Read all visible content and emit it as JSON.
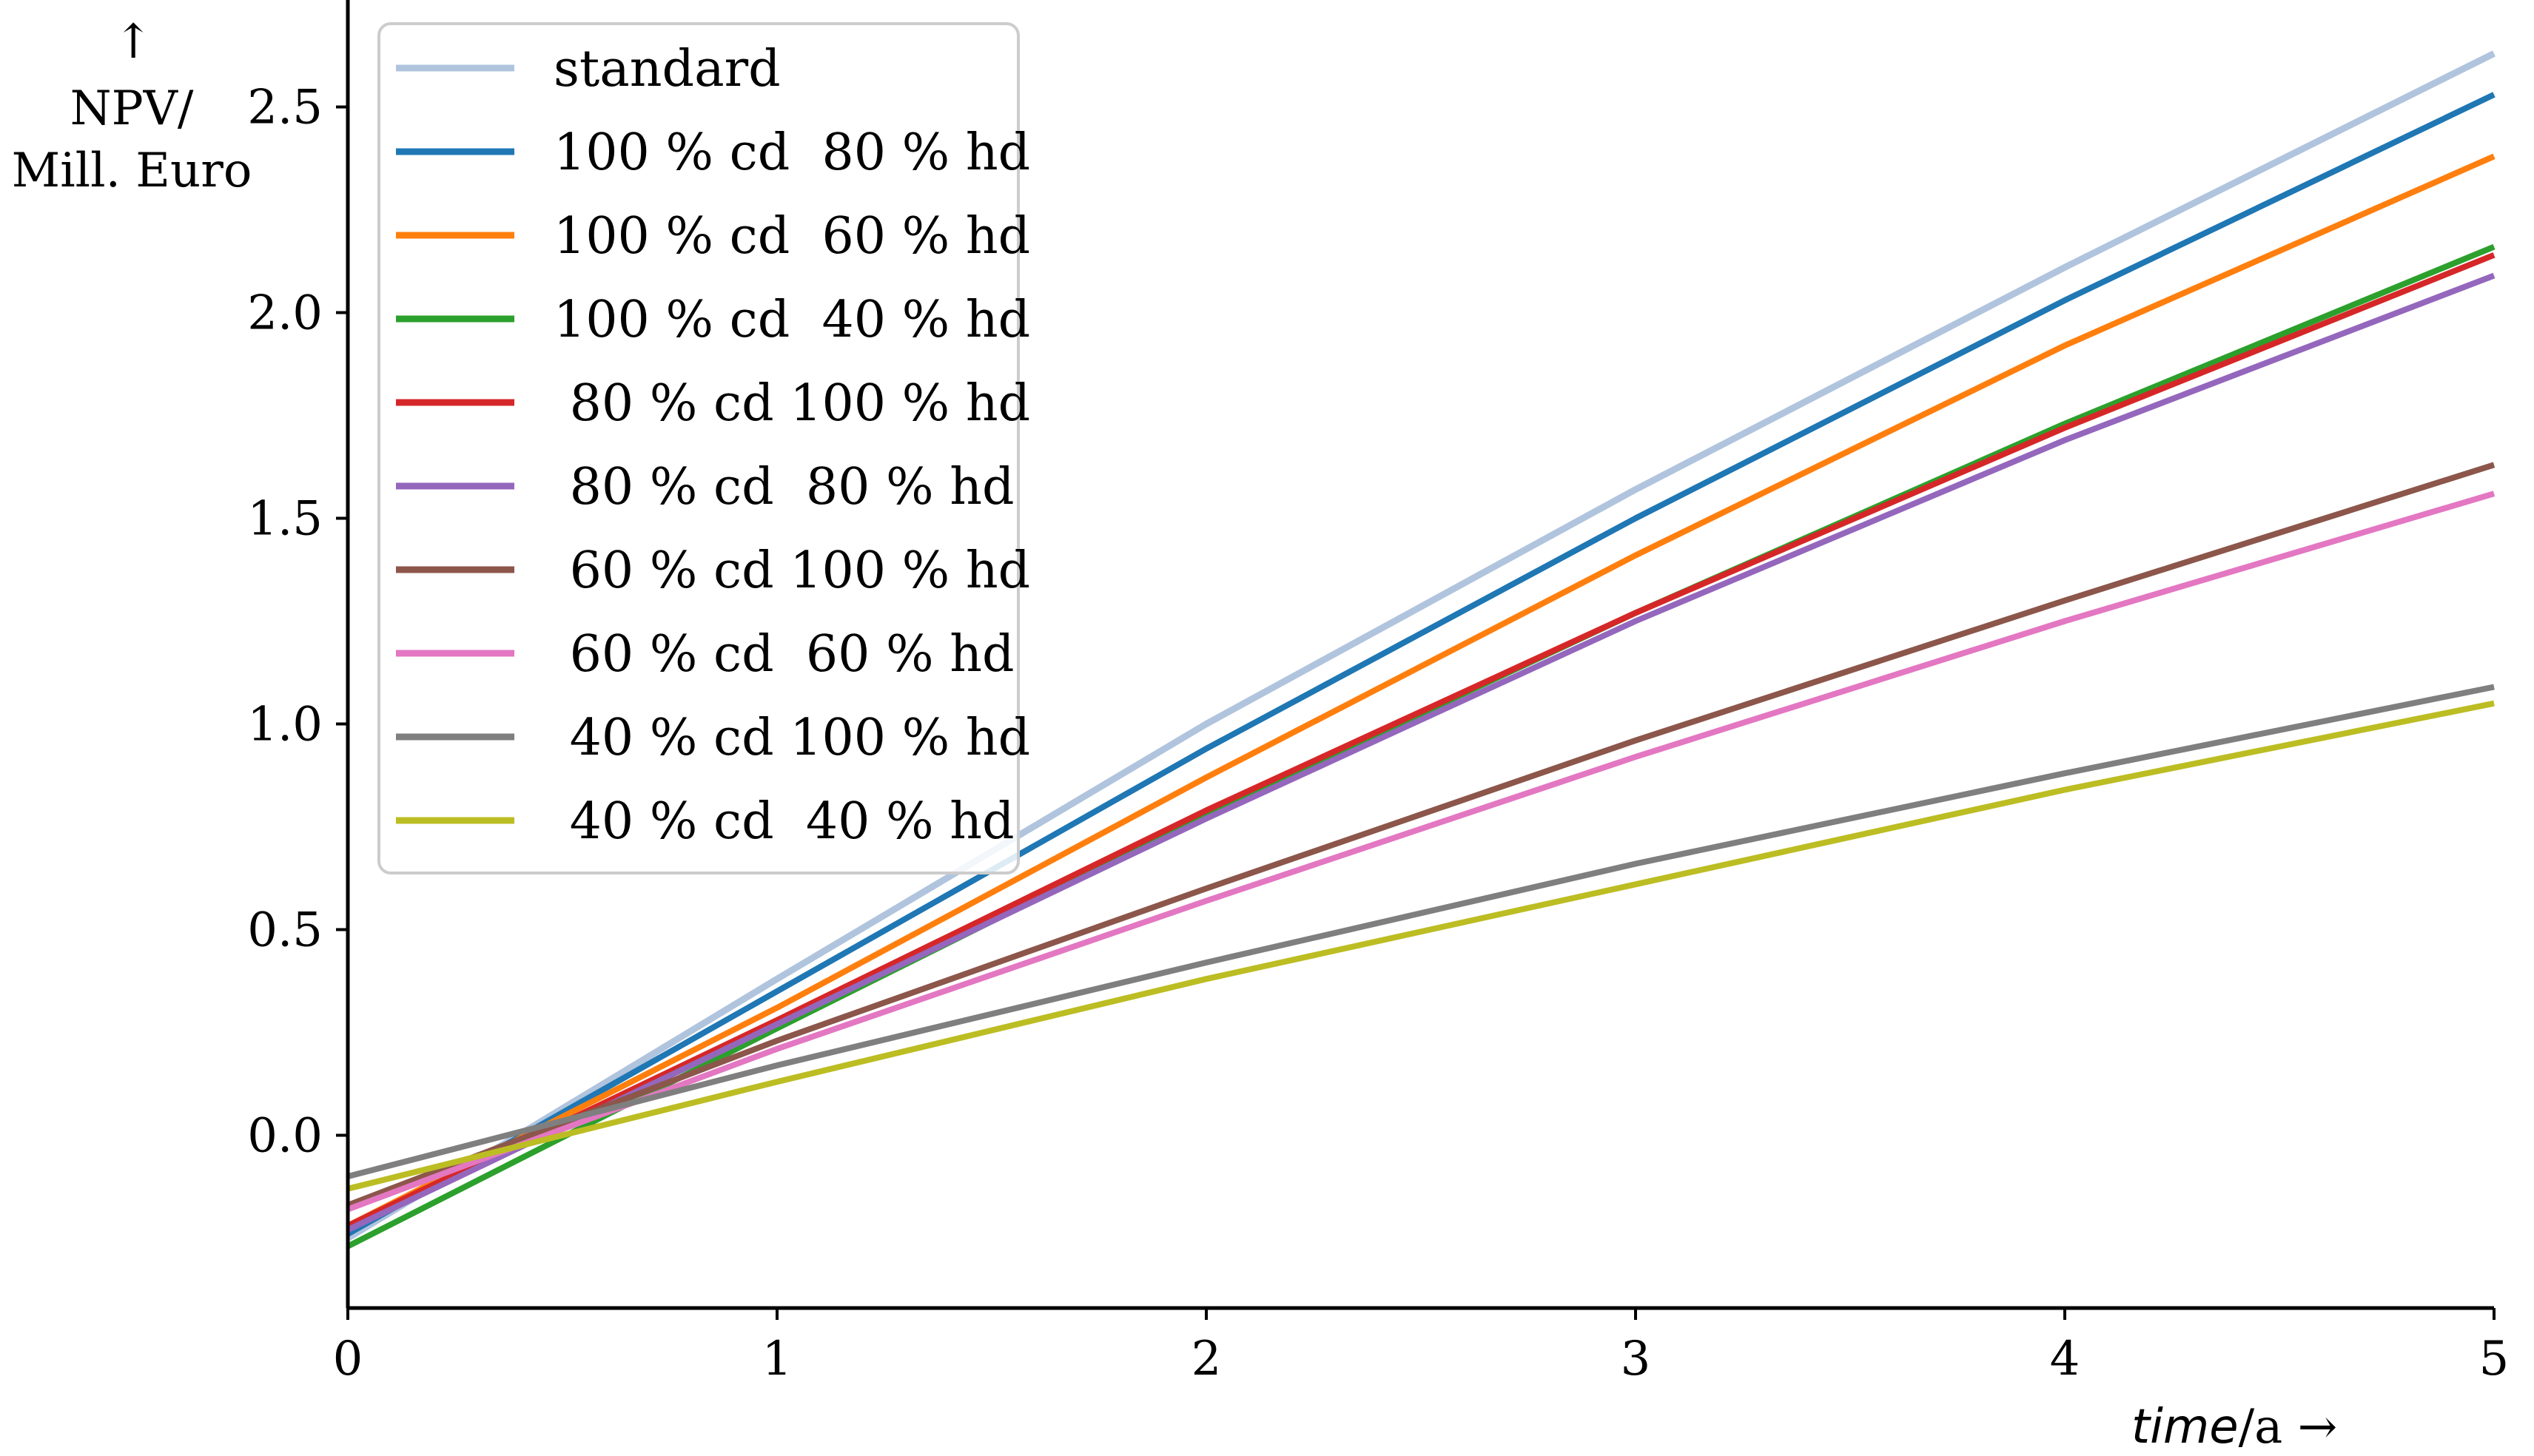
{
  "chart_data": {
    "type": "line",
    "title": "",
    "xlabel_italic": "time",
    "xlabel_unit": "/a →",
    "ylabel_arrow": "↑",
    "ylabel_line1": "NPV/",
    "ylabel_line2": "Mill. Euro",
    "xlim": [
      0,
      5
    ],
    "ylim": [
      -0.42,
      2.76
    ],
    "xticks": [
      0,
      1,
      2,
      3,
      4,
      5
    ],
    "xtick_labels": [
      "0",
      "1",
      "2",
      "3",
      "4",
      "5"
    ],
    "yticks": [
      0.0,
      0.5,
      1.0,
      1.5,
      2.0,
      2.5
    ],
    "ytick_labels": [
      "0.0",
      "0.5",
      "1.0",
      "1.5",
      "2.0",
      "2.5"
    ],
    "grid": false,
    "legend_position": "top-left",
    "x": [
      0,
      1,
      2,
      3,
      4,
      5
    ],
    "series": [
      {
        "name": "standard",
        "color": "#b0c4de",
        "values": [
          -0.25,
          0.38,
          1.0,
          1.57,
          2.11,
          2.63
        ]
      },
      {
        "name": "100 % cd  80 % hd",
        "color": "#1f77b4",
        "values": [
          -0.24,
          0.35,
          0.94,
          1.5,
          2.03,
          2.53
        ]
      },
      {
        "name": "100 % cd  60 % hd",
        "color": "#ff7f0e",
        "values": [
          -0.22,
          0.31,
          0.87,
          1.41,
          1.92,
          2.38
        ]
      },
      {
        "name": "100 % cd  40 % hd",
        "color": "#2ca02c",
        "values": [
          -0.27,
          0.26,
          0.78,
          1.27,
          1.73,
          2.16
        ]
      },
      {
        "name": " 80 % cd 100 % hd",
        "color": "#d62728",
        "values": [
          -0.22,
          0.28,
          0.79,
          1.27,
          1.72,
          2.14
        ]
      },
      {
        "name": " 80 % cd  80 % hd",
        "color": "#9467bd",
        "values": [
          -0.23,
          0.27,
          0.77,
          1.25,
          1.69,
          2.09
        ]
      },
      {
        "name": " 60 % cd 100 % hd",
        "color": "#8c564b",
        "values": [
          -0.17,
          0.23,
          0.6,
          0.96,
          1.3,
          1.63
        ]
      },
      {
        "name": " 60 % cd  60 % hd",
        "color": "#e377c2",
        "values": [
          -0.18,
          0.21,
          0.57,
          0.92,
          1.25,
          1.56
        ]
      },
      {
        "name": " 40 % cd 100 % hd",
        "color": "#7f7f7f",
        "values": [
          -0.1,
          0.17,
          0.42,
          0.66,
          0.88,
          1.09
        ]
      },
      {
        "name": " 40 % cd  40 % hd",
        "color": "#bcbd22",
        "values": [
          -0.13,
          0.13,
          0.38,
          0.61,
          0.84,
          1.05
        ]
      }
    ]
  }
}
